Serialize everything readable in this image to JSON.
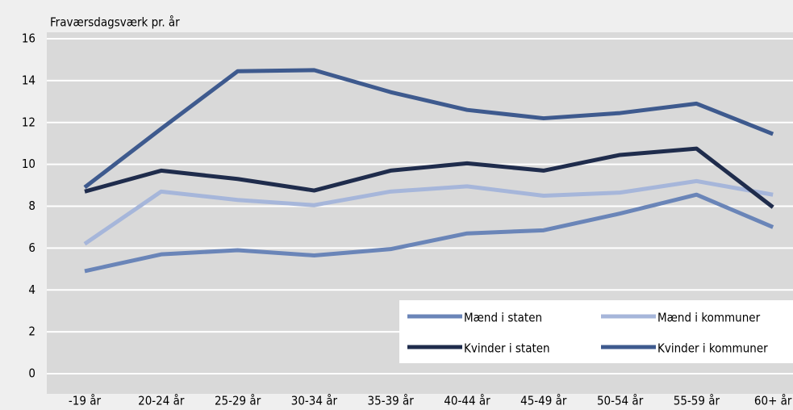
{
  "chart_data": {
    "type": "line",
    "y_label": "Fraværsdagsværk pr. år",
    "categories": [
      "-19 år",
      "20-24 år",
      "25-29 år",
      "30-34 år",
      "35-39 år",
      "40-44 år",
      "45-49 år",
      "50-54 år",
      "55-59 år",
      "60+ år"
    ],
    "series": [
      {
        "name": "Mænd i staten",
        "color": "#6a85b8",
        "values": [
          4.9,
          5.7,
          5.9,
          5.65,
          5.95,
          6.7,
          6.85,
          7.65,
          8.55,
          7.0
        ]
      },
      {
        "name": "Mænd i kommuner",
        "color": "#a6b6da",
        "values": [
          6.2,
          8.7,
          8.3,
          8.05,
          8.7,
          8.95,
          8.5,
          8.65,
          9.2,
          8.55
        ]
      },
      {
        "name": "Kvinder i staten",
        "color": "#1f2c4c",
        "values": [
          8.7,
          9.7,
          9.3,
          8.75,
          9.7,
          10.05,
          9.7,
          10.45,
          10.75,
          7.95
        ]
      },
      {
        "name": "Kvinder i kommuner",
        "color": "#3e5a8e",
        "values": [
          8.9,
          11.7,
          14.45,
          14.5,
          13.45,
          12.6,
          12.2,
          12.45,
          12.9,
          11.45
        ]
      }
    ],
    "ylim": [
      0,
      16
    ],
    "yticks": [
      0,
      2,
      4,
      6,
      8,
      10,
      12,
      14,
      16
    ],
    "grid": true,
    "legend": "lower right"
  }
}
